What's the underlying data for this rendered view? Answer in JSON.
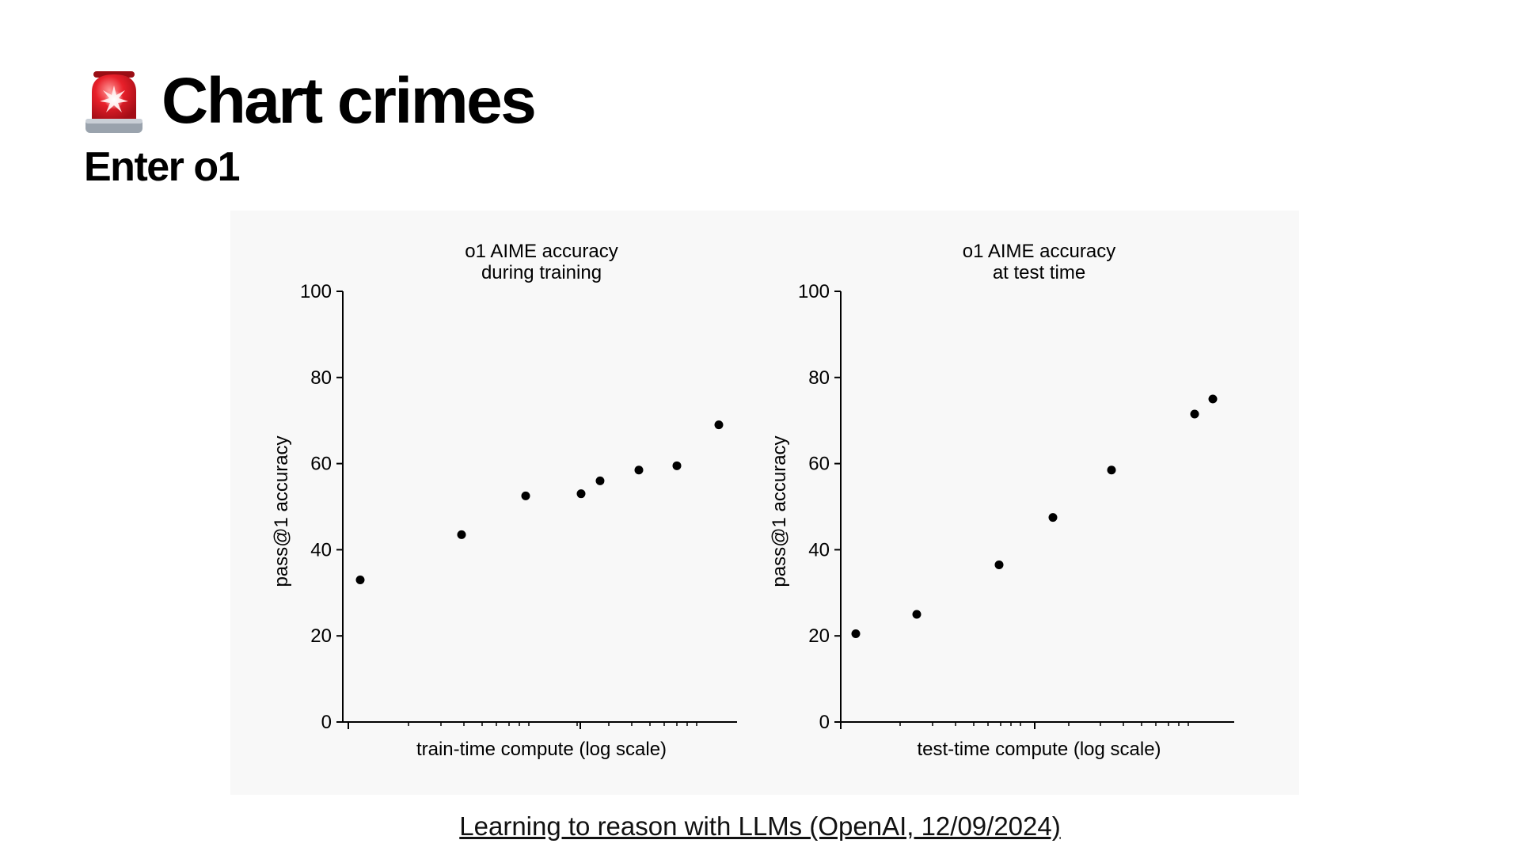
{
  "slide": {
    "title": "Chart crimes",
    "subtitle": "Enter o1",
    "icon": "rotating-light-icon",
    "source_link": "Learning to reason with LLMs (OpenAI, 12/09/2024)"
  },
  "chart_data": [
    {
      "type": "scatter",
      "title": [
        "o1 AIME accuracy",
        "during training"
      ],
      "xlabel": "train-time compute (log scale)",
      "ylabel": "pass@1 accuracy",
      "x_scale": "log",
      "x_tick_labels": "none",
      "ylim": [
        0,
        100
      ],
      "yticks": [
        0,
        20,
        40,
        60,
        80,
        100
      ],
      "y": [
        33,
        43.5,
        52.5,
        53,
        56,
        58.5,
        59.5,
        69
      ],
      "point_color": "#000000"
    },
    {
      "type": "scatter",
      "title": [
        "o1 AIME accuracy",
        "at test time"
      ],
      "xlabel": "test-time compute (log scale)",
      "ylabel": "pass@1 accuracy",
      "x_scale": "log",
      "x_tick_labels": "none",
      "ylim": [
        0,
        100
      ],
      "yticks": [
        0,
        20,
        40,
        60,
        80,
        100
      ],
      "y": [
        20.5,
        25,
        36.5,
        47.5,
        58.5,
        71.5,
        75
      ],
      "point_color": "#000000"
    }
  ]
}
